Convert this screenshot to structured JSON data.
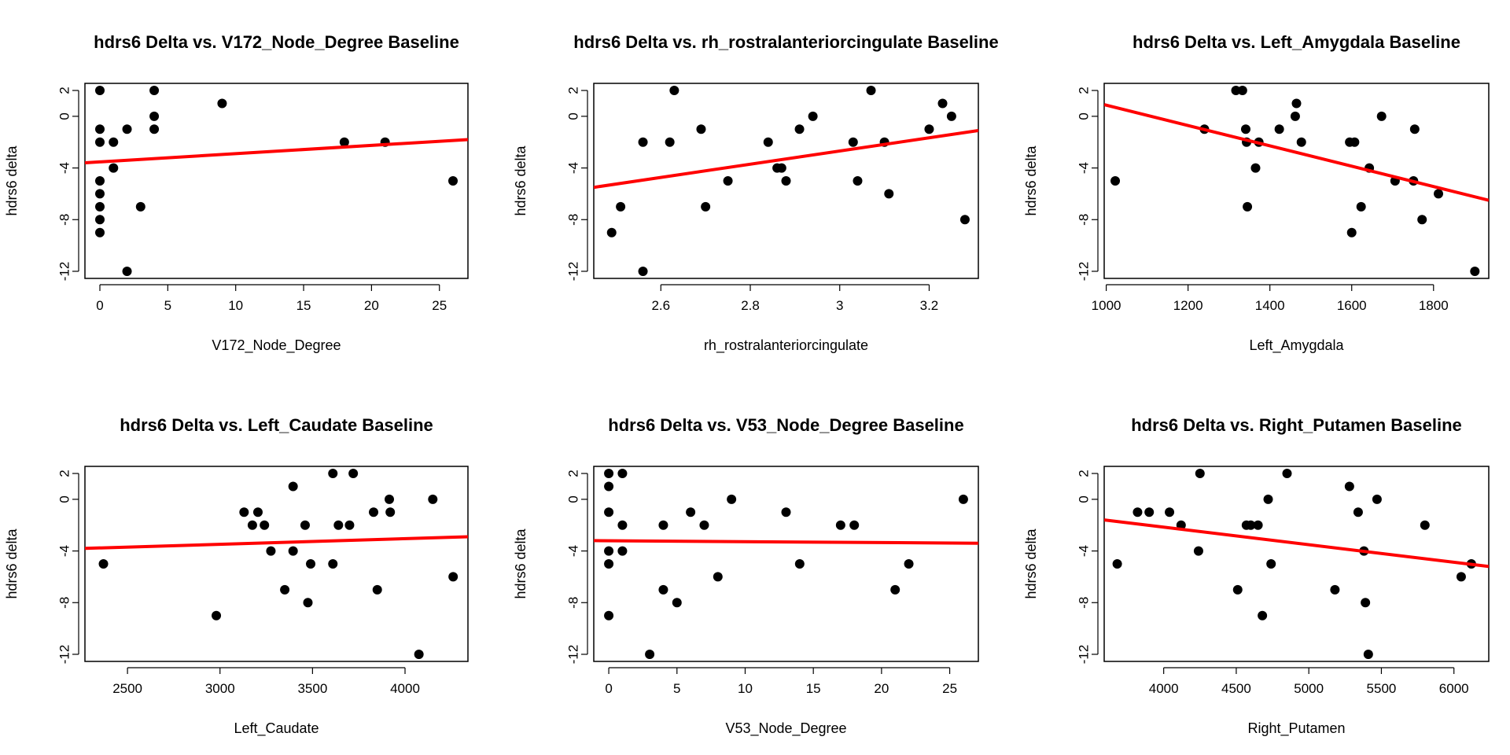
{
  "figure": {
    "colors": {
      "points": "#000000",
      "fit_line": "#ff0000",
      "axes": "#000000"
    }
  },
  "chart_data": [
    {
      "type": "scatter",
      "title": "hdrs6 Delta vs. V172_Node_Degree Baseline",
      "xlabel": "V172_Node_Degree",
      "ylabel": "hdrs6 delta",
      "xlim": [
        -1.1,
        27.1
      ],
      "ylim": [
        -12.55,
        2.55
      ],
      "xticks": [
        0,
        5,
        10,
        15,
        20,
        25
      ],
      "yticks": [
        -12,
        -8,
        -4,
        0,
        2
      ],
      "points": [
        [
          0,
          2
        ],
        [
          0,
          -1
        ],
        [
          0,
          -2
        ],
        [
          0,
          -5
        ],
        [
          0,
          -6
        ],
        [
          0,
          -7
        ],
        [
          0,
          -8
        ],
        [
          0,
          -9
        ],
        [
          1,
          -2
        ],
        [
          1,
          -4
        ],
        [
          2,
          -1
        ],
        [
          2,
          -12
        ],
        [
          3,
          -7
        ],
        [
          4,
          2
        ],
        [
          4,
          0
        ],
        [
          4,
          -1
        ],
        [
          9,
          1
        ],
        [
          18,
          -2
        ],
        [
          21,
          -2
        ],
        [
          26,
          -5
        ]
      ],
      "fit_line": [
        [
          -1.1,
          -3.6
        ],
        [
          27.1,
          -1.8
        ]
      ]
    },
    {
      "type": "scatter",
      "title": "hdrs6 Delta vs. rh_rostralanteriorcingulate Baseline",
      "xlabel": "rh_rostralanteriorcingulate",
      "ylabel": "hdrs6 delta",
      "xlim": [
        2.45,
        3.31
      ],
      "ylim": [
        -12.55,
        2.55
      ],
      "xticks": [
        2.6,
        2.8,
        3.0,
        3.2
      ],
      "yticks": [
        -12,
        -8,
        -4,
        0,
        2
      ],
      "points": [
        [
          2.49,
          -9
        ],
        [
          2.51,
          -7
        ],
        [
          2.56,
          -2
        ],
        [
          2.56,
          -12
        ],
        [
          2.62,
          -2
        ],
        [
          2.63,
          2
        ],
        [
          2.69,
          -1
        ],
        [
          2.7,
          -7
        ],
        [
          2.75,
          -5
        ],
        [
          2.84,
          -2
        ],
        [
          2.86,
          -4
        ],
        [
          2.87,
          -4
        ],
        [
          2.88,
          -5
        ],
        [
          2.91,
          -1
        ],
        [
          2.94,
          0
        ],
        [
          3.03,
          -2
        ],
        [
          3.04,
          -5
        ],
        [
          3.07,
          2
        ],
        [
          3.1,
          -2
        ],
        [
          3.11,
          -6
        ],
        [
          3.2,
          -1
        ],
        [
          3.23,
          1
        ],
        [
          3.25,
          0
        ],
        [
          3.28,
          -8
        ]
      ],
      "fit_line": [
        [
          2.45,
          -5.5
        ],
        [
          3.31,
          -1.1
        ]
      ]
    },
    {
      "type": "scatter",
      "title": "hdrs6 Delta vs. Left_Amygdala Baseline",
      "xlabel": "Left_Amygdala",
      "ylabel": "hdrs6 delta",
      "xlim": [
        995,
        1935
      ],
      "ylim": [
        -12.55,
        2.55
      ],
      "xticks": [
        1000,
        1200,
        1400,
        1600,
        1800
      ],
      "yticks": [
        -12,
        -8,
        -4,
        0,
        2
      ],
      "points": [
        [
          1022,
          -5
        ],
        [
          1240,
          -1
        ],
        [
          1317,
          2
        ],
        [
          1333,
          2
        ],
        [
          1341,
          -1
        ],
        [
          1343,
          -2
        ],
        [
          1345,
          -7
        ],
        [
          1365,
          -4
        ],
        [
          1373,
          -2
        ],
        [
          1423,
          -1
        ],
        [
          1462,
          0
        ],
        [
          1465,
          1
        ],
        [
          1477,
          -2
        ],
        [
          1595,
          -2
        ],
        [
          1600,
          -9
        ],
        [
          1607,
          -2
        ],
        [
          1623,
          -7
        ],
        [
          1643,
          -4
        ],
        [
          1673,
          0
        ],
        [
          1706,
          -5
        ],
        [
          1751,
          -5
        ],
        [
          1754,
          -1
        ],
        [
          1772,
          -8
        ],
        [
          1812,
          -6
        ],
        [
          1901,
          -12
        ]
      ],
      "fit_line": [
        [
          995,
          0.9
        ],
        [
          1935,
          -6.5
        ]
      ]
    },
    {
      "type": "scatter",
      "title": "hdrs6 Delta vs. Left_Caudate Baseline",
      "xlabel": "Left_Caudate",
      "ylabel": "hdrs6 delta",
      "xlim": [
        2270,
        4340
      ],
      "ylim": [
        -12.55,
        2.55
      ],
      "xticks": [
        2500,
        3000,
        3500,
        4000
      ],
      "yticks": [
        -12,
        -8,
        -4,
        0,
        2
      ],
      "points": [
        [
          2370,
          -5
        ],
        [
          2980,
          -9
        ],
        [
          3130,
          -1
        ],
        [
          3175,
          -2
        ],
        [
          3205,
          -1
        ],
        [
          3240,
          -2
        ],
        [
          3275,
          -4
        ],
        [
          3350,
          -7
        ],
        [
          3395,
          1
        ],
        [
          3395,
          -4
        ],
        [
          3460,
          -2
        ],
        [
          3475,
          -8
        ],
        [
          3490,
          -5
        ],
        [
          3610,
          2
        ],
        [
          3610,
          -5
        ],
        [
          3640,
          -2
        ],
        [
          3700,
          -2
        ],
        [
          3720,
          2
        ],
        [
          3830,
          -1
        ],
        [
          3850,
          -7
        ],
        [
          3915,
          0
        ],
        [
          3920,
          -1
        ],
        [
          4075,
          -12
        ],
        [
          4150,
          0
        ],
        [
          4260,
          -6
        ]
      ],
      "fit_line": [
        [
          2270,
          -3.8
        ],
        [
          4340,
          -2.9
        ]
      ]
    },
    {
      "type": "scatter",
      "title": "hdrs6 Delta vs. V53_Node_Degree Baseline",
      "xlabel": "V53_Node_Degree",
      "ylabel": "hdrs6 delta",
      "xlim": [
        -1.1,
        27.1
      ],
      "ylim": [
        -12.55,
        2.55
      ],
      "xticks": [
        0,
        5,
        10,
        15,
        20,
        25
      ],
      "yticks": [
        -12,
        -8,
        -4,
        0,
        2
      ],
      "points": [
        [
          0,
          2
        ],
        [
          0,
          1
        ],
        [
          0,
          -1
        ],
        [
          0,
          -4
        ],
        [
          0,
          -5
        ],
        [
          0,
          -9
        ],
        [
          1,
          2
        ],
        [
          1,
          -2
        ],
        [
          1,
          -4
        ],
        [
          3,
          -12
        ],
        [
          4,
          -2
        ],
        [
          4,
          -7
        ],
        [
          5,
          -8
        ],
        [
          6,
          -1
        ],
        [
          7,
          -2
        ],
        [
          8,
          -6
        ],
        [
          9,
          0
        ],
        [
          13,
          -1
        ],
        [
          14,
          -5
        ],
        [
          17,
          -2
        ],
        [
          18,
          -2
        ],
        [
          21,
          -7
        ],
        [
          22,
          -5
        ],
        [
          26,
          0
        ]
      ],
      "fit_line": [
        [
          -1.1,
          -3.2
        ],
        [
          27.1,
          -3.4
        ]
      ]
    },
    {
      "type": "scatter",
      "title": "hdrs6 Delta vs. Right_Putamen Baseline",
      "xlabel": "Right_Putamen",
      "ylabel": "hdrs6 delta",
      "xlim": [
        3590,
        6240
      ],
      "ylim": [
        -12.55,
        2.55
      ],
      "xticks": [
        4000,
        4500,
        5000,
        5500,
        6000
      ],
      "yticks": [
        -12,
        -8,
        -4,
        0,
        2
      ],
      "points": [
        [
          3680,
          -5
        ],
        [
          3820,
          -1
        ],
        [
          3900,
          -1
        ],
        [
          4040,
          -1
        ],
        [
          4120,
          -2
        ],
        [
          4240,
          -4
        ],
        [
          4250,
          2
        ],
        [
          4510,
          -7
        ],
        [
          4570,
          -2
        ],
        [
          4600,
          -2
        ],
        [
          4650,
          -2
        ],
        [
          4680,
          -9
        ],
        [
          4720,
          0
        ],
        [
          4740,
          -5
        ],
        [
          4850,
          2
        ],
        [
          5180,
          -7
        ],
        [
          5280,
          1
        ],
        [
          5340,
          -1
        ],
        [
          5380,
          -4
        ],
        [
          5390,
          -8
        ],
        [
          5410,
          -12
        ],
        [
          5470,
          0
        ],
        [
          5800,
          -2
        ],
        [
          6050,
          -6
        ],
        [
          6120,
          -5
        ]
      ],
      "fit_line": [
        [
          3590,
          -1.6
        ],
        [
          6240,
          -5.2
        ]
      ]
    }
  ]
}
